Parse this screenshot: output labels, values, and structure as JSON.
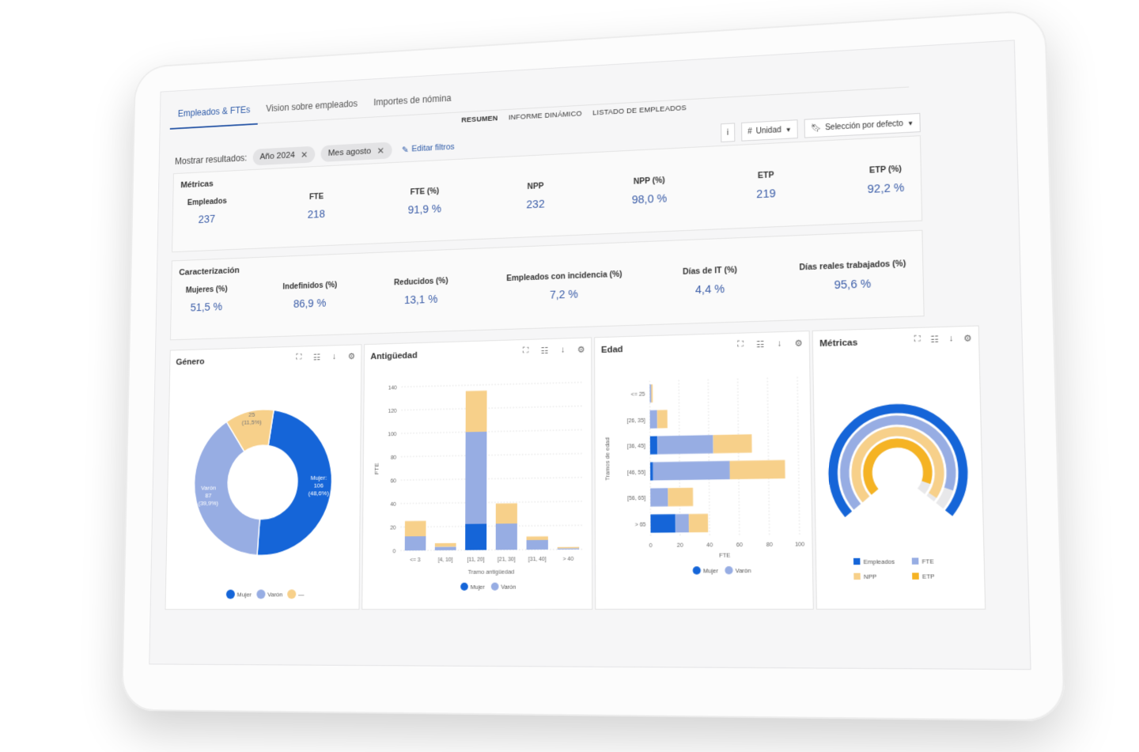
{
  "tabs": [
    {
      "label": "Empleados & FTEs",
      "active": true
    },
    {
      "label": "Vision sobre empleados",
      "active": false
    },
    {
      "label": "Importes de nómina",
      "active": false
    }
  ],
  "subtabs": [
    {
      "label": "RESUMEN",
      "active": true
    },
    {
      "label": "INFORME DINÁMICO",
      "active": false
    },
    {
      "label": "LISTADO DE EMPLEADOS",
      "active": false
    }
  ],
  "filters": {
    "label": "Mostrar resultados:",
    "chips": [
      "Año 2024",
      "Mes agosto"
    ],
    "edit_label": "Editar filtros",
    "info_label": "i",
    "unit_label": "Unidad",
    "selection_label": "Selección por defecto"
  },
  "metricas": {
    "title": "Métricas",
    "items": [
      {
        "label": "Empleados",
        "value": "237"
      },
      {
        "label": "FTE",
        "value": "218"
      },
      {
        "label": "FTE (%)",
        "value": "91,9 %"
      },
      {
        "label": "NPP",
        "value": "232"
      },
      {
        "label": "NPP (%)",
        "value": "98,0 %"
      },
      {
        "label": "ETP",
        "value": "219"
      },
      {
        "label": "ETP (%)",
        "value": "92,2 %"
      }
    ]
  },
  "caracterizacion": {
    "title": "Caracterización",
    "items": [
      {
        "label": "Mujeres (%)",
        "value": "51,5 %"
      },
      {
        "label": "Indefinidos (%)",
        "value": "86,9 %"
      },
      {
        "label": "Reducidos (%)",
        "value": "13,1 %"
      },
      {
        "label": "Empleados con incidencia (%)",
        "value": "7,2 %"
      },
      {
        "label": "Días de IT (%)",
        "value": "4,4 %"
      },
      {
        "label": "Días reales trabajados (%)",
        "value": "95,6 %"
      }
    ]
  },
  "colors": {
    "mujer": "#1565d8",
    "varon": "#97ade3",
    "other": "#f7d08a",
    "etp": "#f5b324"
  },
  "widgets": {
    "genero": {
      "title": "Género"
    },
    "antiguedad": {
      "title": "Antigüedad"
    },
    "edad": {
      "title": "Edad"
    },
    "metricas": {
      "title": "Métricas"
    }
  },
  "chart_data": [
    {
      "type": "pie",
      "title": "Género",
      "labels": [
        "Mujer",
        "Varón",
        "—"
      ],
      "values": [
        106,
        87,
        25
      ],
      "data_labels": [
        "Mujer:\n106\n(48,6%)",
        "Varón\n87\n(39,9%)",
        "25\n(11,5%)"
      ],
      "legend": [
        "Mujer",
        "Varón",
        "—"
      ],
      "legend_position": "bottom"
    },
    {
      "type": "bar",
      "title": "Antigüedad",
      "categories": [
        "<= 3",
        "[4, 10]",
        "[11, 20]",
        "[21, 30]",
        "[31, 40]",
        "> 40"
      ],
      "series": [
        {
          "name": "Mujer",
          "values": [
            0,
            0,
            22,
            0,
            0,
            0
          ]
        },
        {
          "name": "Varón",
          "values": [
            12,
            3,
            78,
            22,
            8,
            1
          ]
        },
        {
          "name": "",
          "values": [
            13,
            3,
            35,
            17,
            3,
            1
          ]
        }
      ],
      "stacked": true,
      "xlabel": "Tramo antigüedad",
      "ylabel": "FTE",
      "yticks": [
        "0",
        "20",
        "40",
        "60",
        "80",
        "100",
        "120",
        "140"
      ],
      "ylim": [
        0,
        140
      ],
      "legend": [
        "Mujer",
        "Varón"
      ],
      "legend_position": "bottom",
      "grid": true
    },
    {
      "type": "bar",
      "orientation": "horizontal",
      "title": "Edad",
      "categories": [
        "<= 25",
        "[26, 35]",
        "[36, 45]",
        "[46, 55]",
        "[56, 65]",
        "> 65"
      ],
      "series": [
        {
          "name": "Mujer",
          "values": [
            0,
            0,
            5,
            2,
            0,
            17
          ]
        },
        {
          "name": "Varón",
          "values": [
            1,
            5,
            38,
            52,
            12,
            9
          ]
        },
        {
          "name": "",
          "values": [
            1,
            7,
            26,
            37,
            17,
            13
          ]
        }
      ],
      "stacked": true,
      "xlabel": "FTE",
      "ylabel": "Tramos de edad",
      "xticks": [
        "0",
        "20",
        "40",
        "60",
        "80",
        "100"
      ],
      "xlim": [
        0,
        100
      ],
      "legend": [
        "Mujer",
        "Varón"
      ],
      "legend_position": "bottom",
      "grid": true
    },
    {
      "type": "pie",
      "style": "radial-arcs",
      "title": "Métricas",
      "labels": [
        "Empleados",
        "FTE",
        "NPP",
        "ETP"
      ],
      "values": [
        237,
        218,
        232,
        219
      ],
      "legend": [
        "Empleados",
        "FTE",
        "NPP",
        "ETP"
      ],
      "legend_position": "bottom"
    }
  ]
}
